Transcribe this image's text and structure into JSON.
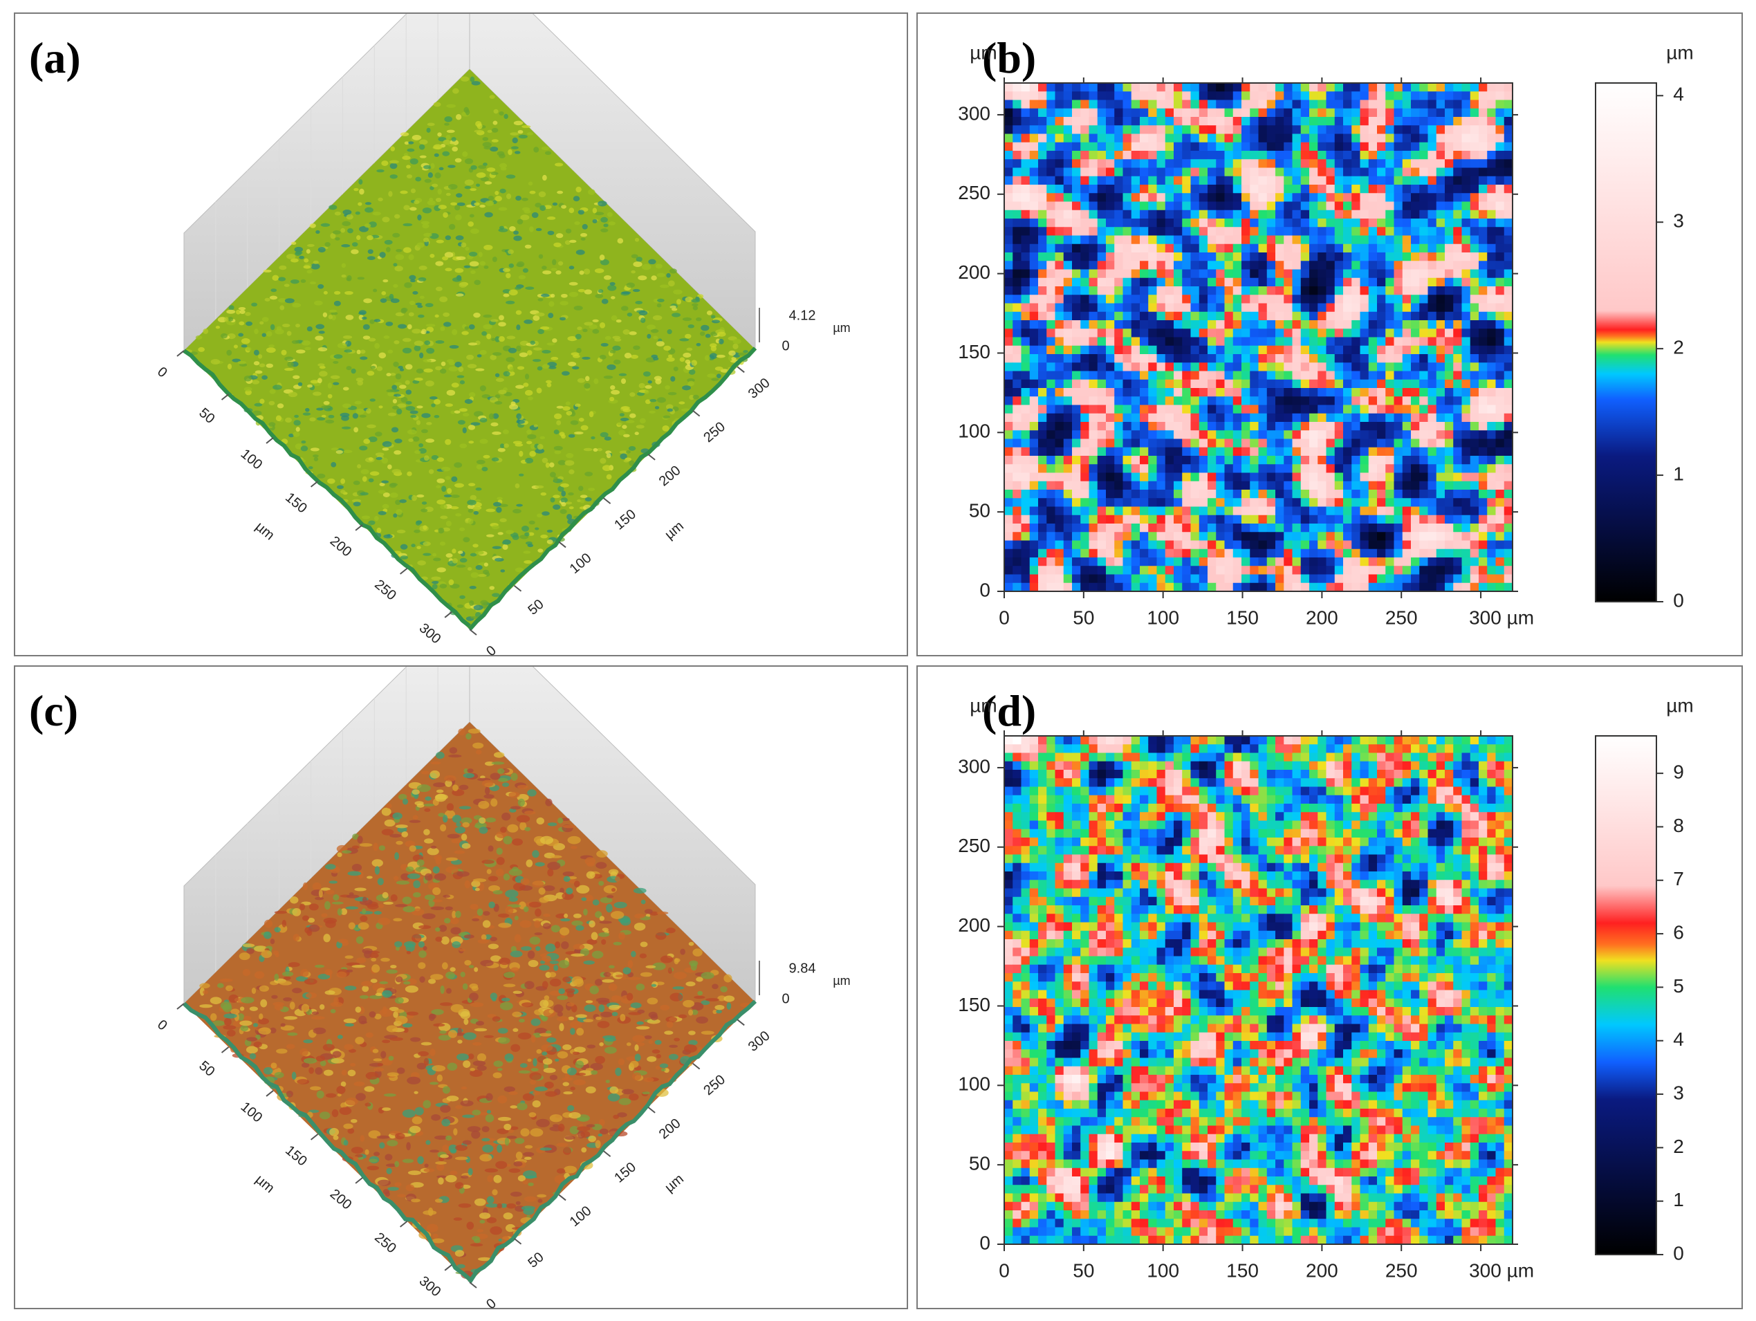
{
  "colors": {
    "panel_border": "#7a7a7a",
    "panel_a_surface": "#8fb41e",
    "panel_c_surface": "#b86a2e"
  },
  "panels": [
    {
      "label": "(a)",
      "kind": "surface-3d",
      "x_ticks": [
        "0",
        "50",
        "100",
        "150",
        "200",
        "250",
        "300"
      ],
      "y_ticks": [
        "0",
        "50",
        "100",
        "150",
        "200",
        "250",
        "300"
      ],
      "axis_unit": "µm",
      "z_max_label": "4.12",
      "z_min_label": "0",
      "z_unit": "µm"
    },
    {
      "label": "(b)",
      "kind": "heatmap",
      "x_ticks": [
        "0",
        "50",
        "100",
        "150",
        "200",
        "250",
        "300 µm"
      ],
      "y_ticks": [
        "0",
        "50",
        "100",
        "150",
        "200",
        "250",
        "300"
      ],
      "y_unit": "µm",
      "colorbar_unit": "µm",
      "colorbar_ticks": [
        "0",
        "1",
        "2",
        "3",
        "4"
      ]
    },
    {
      "label": "(c)",
      "kind": "surface-3d",
      "x_ticks": [
        "0",
        "50",
        "100",
        "150",
        "200",
        "250",
        "300"
      ],
      "y_ticks": [
        "0",
        "50",
        "100",
        "150",
        "200",
        "250",
        "300"
      ],
      "axis_unit": "µm",
      "z_max_label": "9.84",
      "z_min_label": "0",
      "z_unit": "µm"
    },
    {
      "label": "(d)",
      "kind": "heatmap",
      "x_ticks": [
        "0",
        "50",
        "100",
        "150",
        "200",
        "250",
        "300 µm"
      ],
      "y_ticks": [
        "0",
        "50",
        "100",
        "150",
        "200",
        "250",
        "300"
      ],
      "y_unit": "µm",
      "colorbar_unit": "µm",
      "colorbar_ticks": [
        "0",
        "1",
        "2",
        "3",
        "4",
        "5",
        "6",
        "7",
        "8",
        "9"
      ]
    }
  ],
  "chart_data": [
    {
      "type": "heatmap",
      "panel": "(a)",
      "style": "3D surface topography",
      "x_range": [
        0,
        320
      ],
      "y_range": [
        0,
        320
      ],
      "z_range": [
        0,
        4.12
      ],
      "units": "µm"
    },
    {
      "type": "heatmap",
      "panel": "(b)",
      "style": "2D height map",
      "x_range": [
        0,
        320
      ],
      "y_range": [
        0,
        320
      ],
      "colorbar_range": [
        0,
        4.1
      ],
      "units": "µm",
      "colormap": [
        "#000000",
        "#0a1a80",
        "#1060ff",
        "#00c8ff",
        "#20e070",
        "#f0e020",
        "#ff7020",
        "#ff2020",
        "#ffc8c8",
        "#ffffff"
      ],
      "colormap_stops": [
        0,
        1.15,
        1.6,
        1.8,
        1.95,
        2.05,
        2.1,
        2.15,
        2.3,
        4.1
      ]
    },
    {
      "type": "heatmap",
      "panel": "(c)",
      "style": "3D surface topography",
      "x_range": [
        0,
        320
      ],
      "y_range": [
        0,
        320
      ],
      "z_range": [
        0,
        9.84
      ],
      "units": "µm"
    },
    {
      "type": "heatmap",
      "panel": "(d)",
      "style": "2D height map",
      "x_range": [
        0,
        320
      ],
      "y_range": [
        0,
        320
      ],
      "colorbar_range": [
        0,
        9.7
      ],
      "units": "µm",
      "colormap": [
        "#000000",
        "#0a1a80",
        "#1060ff",
        "#00c8ff",
        "#20e070",
        "#f0e020",
        "#ff7020",
        "#ff2020",
        "#ffc8c8",
        "#ffffff"
      ],
      "colormap_stops": [
        0,
        2.9,
        3.6,
        4.3,
        5.0,
        5.5,
        5.8,
        6.2,
        6.9,
        9.7
      ]
    }
  ]
}
